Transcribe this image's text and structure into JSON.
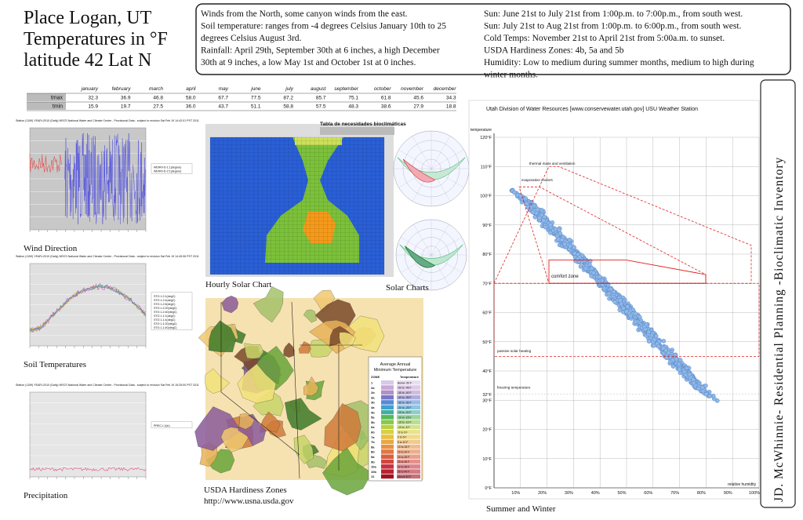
{
  "header": {
    "title_lines": [
      "Place Logan, UT",
      "Temperatures in °F",
      "latitude 42 Lat N"
    ]
  },
  "info": {
    "left": [
      "Winds from the North, some canyon winds from the east.",
      "Soil temperature:  ranges from -4 degrees Celsius January 10th to 25",
      "degrees Celsius August 3rd.",
      "Rainfall: April 29th, September 30th at 6 inches, a high December",
      "30th at 9 inches, a low May 1st and October 1st at 0 inches."
    ],
    "right": [
      "Sun: June 21st to July 21st from 1:00p.m. to 7:00p.m., from south west.",
      "Sun: July 21st to Aug 21st from 1:00p.m. to 6:00p.m., from south west.",
      "Cold Temps: November 21st to April 21st from 5:00a.m. to sunset.",
      "USDA Hardiness Zones: 4b, 5a and 5b",
      "Humidity: Low to medium during summer months, medium to high during",
      "winter months."
    ]
  },
  "table": {
    "months": [
      "january",
      "february",
      "march",
      "april",
      "may",
      "june",
      "july",
      "august",
      "september",
      "october",
      "november",
      "december"
    ],
    "rows": [
      {
        "name": "tmax",
        "values": [
          "32.3",
          "36.9",
          "46.8",
          "58.0",
          "67.7",
          "77.5",
          "87.2",
          "85.7",
          "75.1",
          "61.8",
          "45.6",
          "34.3"
        ]
      },
      {
        "name": "tmin",
        "values": [
          "15.9",
          "19.7",
          "27.5",
          "36.0",
          "43.7",
          "51.1",
          "58.8",
          "57.5",
          "48.3",
          "38.6",
          "27.9",
          "18.8"
        ]
      }
    ]
  },
  "panels": {
    "wind": {
      "header": "Station (1159) YEAR=2010 (Daily) NRCS National Water and Climate Center - Provisional Data - subject to revision Sat Feb 19 14:42:01 PST 2011",
      "legend": [
        "WDIRV-D-1:1(degree)",
        "WDIRV-D-2:1(degree)"
      ],
      "caption": "Wind Direction"
    },
    "soil": {
      "header": "Station (1159) YEAR=2010 (Daily) NRCS National Water and Climate Center - Provisional Data - subject to revision Sat Feb 19 14:49:06 PST 2011",
      "legend": [
        "STO:1-2:1(degC)",
        "STO:1-2:4(degC)",
        "STO:1-2:8(degC)",
        "STO:1-2:20(degC)",
        "STO:1-2:40(degC)",
        "STO:1-1:1(degC)",
        "STO:1-1:4(degC)",
        "STO:1-1:20(degC)",
        "STO:1-1:40(degC)"
      ],
      "caption": "Soil Temperatures"
    },
    "precip": {
      "header": "Station (1159) YEAR=2010 (Daily) NRCS National Water and Climate Center - Provisional Data - subject to revision Sat Feb 19 15:25:00 PST 2011",
      "legend": [
        "PREC-I-1(in)"
      ],
      "caption": "Precipitation"
    },
    "hourly": {
      "title": "Tabla de necesidades bioclimáticas",
      "caption": "Hourly Solar Chart"
    },
    "solar": {
      "caption": "Solar Charts"
    },
    "usda": {
      "legend_title": [
        "Average Annual",
        "Minimum Temperature"
      ],
      "col_zone": "ZONE",
      "col_temp": "Temperature",
      "zones": [
        "1",
        "2a",
        "2b",
        "3a",
        "3b",
        "4a",
        "4b",
        "5a",
        "5b",
        "6a",
        "6b",
        "7a",
        "7b",
        "8a",
        "8b",
        "9a",
        "9b",
        "10a",
        "10b",
        "11"
      ],
      "temps": [
        "Below -50 F",
        "-50 to -45 F",
        "-45 to -40 F",
        "-40 to -35 F",
        "-35 to -30 F",
        "-30 to -25 F",
        "-25 to -20 F",
        "-20 to -15 F",
        "-15 to -10 F",
        "-10 to -5 F",
        "-5 to 0 F",
        "0 to 5 F",
        "5 to 10 F",
        "10 to 15 F",
        "15 to 20 F",
        "20 to 25 F",
        "25 to 30 F",
        "30 to 35 F",
        "35 to 40 F",
        "Above 40 F"
      ],
      "caption": "USDA Hardiness Zones",
      "url": "http://www.usna.usda.gov"
    }
  },
  "psychro": {
    "title": "Utah Division of Water Resources [www.conservewater.utah.gov] USU Weather Station",
    "y_label": "temperature",
    "x_label": "relative humidity",
    "temps": [
      "120°F",
      "110°F",
      "100°F",
      "90°F",
      "80°F",
      "70°F",
      "60°F",
      "50°F",
      "40°F",
      "32°F",
      "30°F",
      "20°F",
      "10°F",
      "0°F"
    ],
    "humidity": [
      "10%",
      "20%",
      "30%",
      "40%",
      "50%",
      "60%",
      "70%",
      "80%",
      "90%",
      "100%"
    ],
    "zones": [
      "thermal mass and ventilation",
      "evaporative coolers",
      "comfort zone",
      "passive solar heating",
      "freezing temperature"
    ],
    "caption": "Summer and Winter"
  },
  "side": {
    "text": "JD. McWhinnie- Residential Planning -Bioclimatic Inventory"
  }
}
